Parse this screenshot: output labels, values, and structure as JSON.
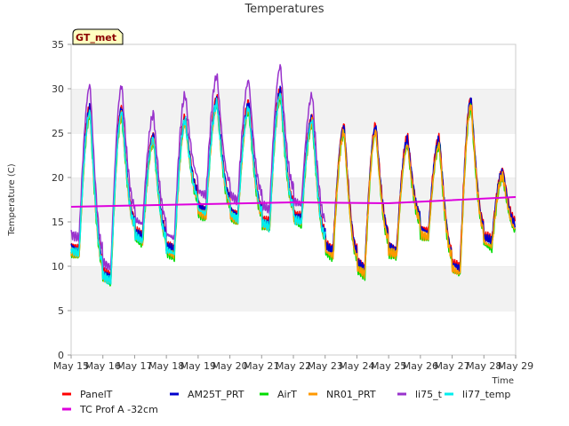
{
  "chart_data": {
    "type": "line",
    "title": "Temperatures",
    "xlabel": "Time",
    "ylabel": "Temperature (C)",
    "badge": "GT_met",
    "ylim": [
      0,
      35
    ],
    "yticks": [
      0,
      5,
      10,
      15,
      20,
      25,
      30,
      35
    ],
    "xlim": [
      "2024-05-15",
      "2024-05-29"
    ],
    "xtick_labels": [
      "May 15",
      "May 16",
      "May 17",
      "May 18",
      "May 19",
      "May 20",
      "May 21",
      "May 22",
      "May 23",
      "May 24",
      "May 25",
      "May 26",
      "May 27",
      "May 28",
      "May 29"
    ],
    "grid": "horizontal bands",
    "legend_position": "bottom",
    "daily": {
      "days": [
        "May 15",
        "May 16",
        "May 17",
        "May 18",
        "May 19",
        "May 20",
        "May 21",
        "May 22",
        "May 23",
        "May 24",
        "May 25",
        "May 26",
        "May 27",
        "May 28"
      ],
      "min": [
        12,
        9,
        13.5,
        12,
        16.5,
        16,
        15,
        15.5,
        12,
        10,
        12,
        14,
        10,
        13
      ],
      "max": [
        28,
        28,
        25,
        27,
        29,
        28.5,
        30,
        27,
        26,
        26,
        24.5,
        24.5,
        29,
        21
      ]
    },
    "series": [
      {
        "name": "PanelT",
        "color": "#ff0000",
        "offset": 0.0,
        "range": [
          "May 15",
          "May 29"
        ]
      },
      {
        "name": "AM25T_PRT",
        "color": "#0000cc",
        "offset": -0.2,
        "range": [
          "May 15",
          "May 29"
        ]
      },
      {
        "name": "AirT",
        "color": "#00dd00",
        "offset": -1.0,
        "range": [
          "May 15",
          "May 29"
        ]
      },
      {
        "name": "NR01_PRT",
        "color": "#ff9900",
        "offset": -0.8,
        "range": [
          "May 15",
          "May 29"
        ]
      },
      {
        "name": "li75_t",
        "color": "#9933cc",
        "offset": 1.6,
        "range": [
          "May 15",
          "May 23"
        ]
      },
      {
        "name": "li77_temp",
        "color": "#00eeee",
        "offset": -0.6,
        "range": [
          "May 15",
          "May 23"
        ]
      },
      {
        "name": "TC Prof A -32cm",
        "color": "#dd00dd",
        "x": [
          "May 15",
          "May 22",
          "May 25",
          "May 29"
        ],
        "values": [
          16.7,
          17.2,
          17.1,
          17.8
        ]
      }
    ]
  }
}
